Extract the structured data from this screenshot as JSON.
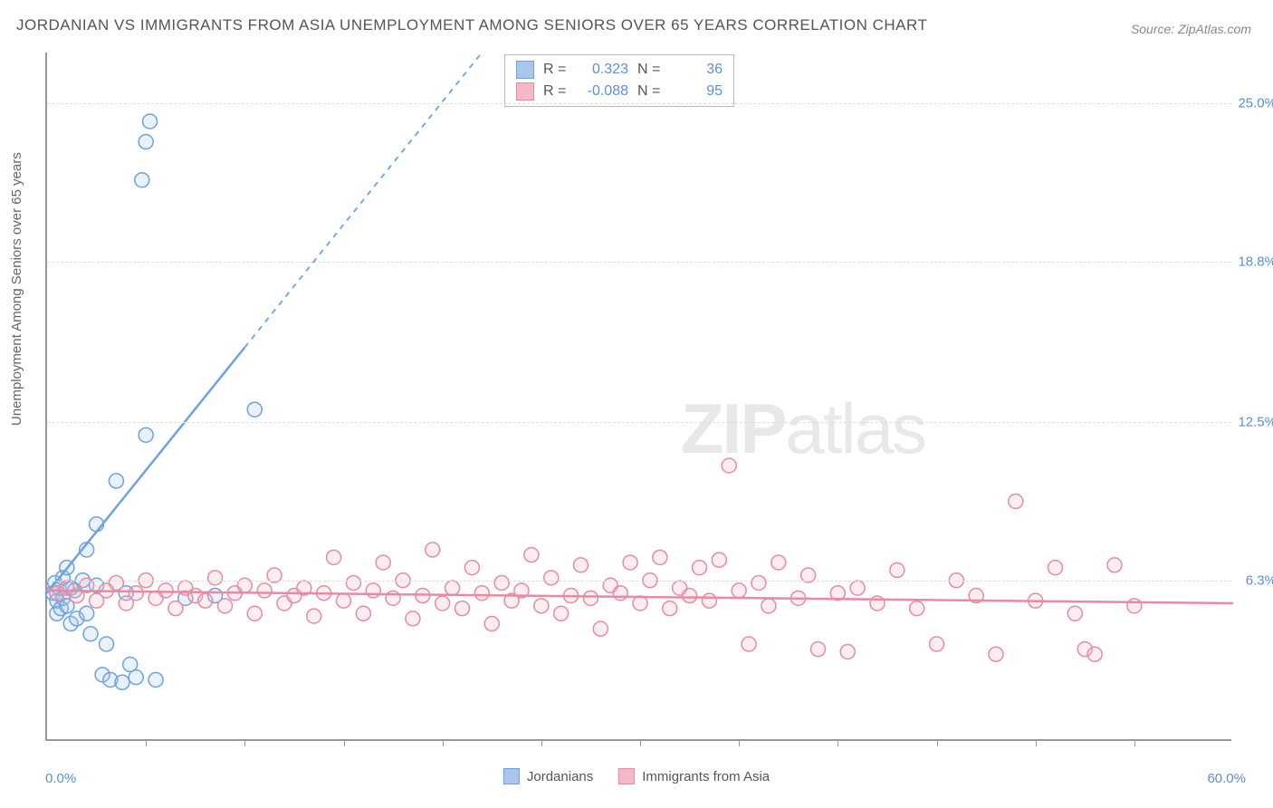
{
  "title": "JORDANIAN VS IMMIGRANTS FROM ASIA UNEMPLOYMENT AMONG SENIORS OVER 65 YEARS CORRELATION CHART",
  "source": "Source: ZipAtlas.com",
  "y_axis_label": "Unemployment Among Seniors over 65 years",
  "watermark_zip": "ZIP",
  "watermark_atlas": "atlas",
  "chart": {
    "type": "scatter",
    "background_color": "#ffffff",
    "grid_color": "#dddddd",
    "axis_color": "#999999",
    "xlim": [
      0,
      60
    ],
    "ylim": [
      0,
      27
    ],
    "xlim_min_label": "0.0%",
    "xlim_max_label": "60.0%",
    "xtick_positions": [
      5,
      10,
      15,
      20,
      25,
      30,
      35,
      40,
      45,
      50,
      55
    ],
    "ytick_labels": [
      "6.3%",
      "12.5%",
      "18.8%",
      "25.0%"
    ],
    "ytick_values": [
      6.3,
      12.5,
      18.8,
      25.0
    ],
    "marker_radius": 8,
    "marker_fill_opacity": 0.25,
    "marker_stroke_width": 1.5,
    "series": [
      {
        "name": "Jordanians",
        "color_stroke": "#6ca2e0",
        "color_fill": "#a9c7ec",
        "R": "0.323",
        "N": "36",
        "trend": {
          "x1": 0,
          "y1": 5.8,
          "x2": 22,
          "y2": 27,
          "dash_from_x": 10
        },
        "points": [
          [
            0.3,
            5.8
          ],
          [
            0.4,
            6.2
          ],
          [
            0.5,
            5.0
          ],
          [
            0.5,
            5.5
          ],
          [
            0.6,
            6.0
          ],
          [
            0.7,
            5.2
          ],
          [
            0.8,
            6.4
          ],
          [
            0.8,
            5.6
          ],
          [
            1.0,
            6.8
          ],
          [
            1.0,
            5.3
          ],
          [
            1.2,
            4.6
          ],
          [
            1.2,
            6.0
          ],
          [
            1.4,
            5.9
          ],
          [
            1.5,
            4.8
          ],
          [
            1.8,
            6.3
          ],
          [
            2.0,
            5.0
          ],
          [
            2.0,
            7.5
          ],
          [
            2.2,
            4.2
          ],
          [
            2.5,
            6.1
          ],
          [
            2.5,
            8.5
          ],
          [
            2.8,
            2.6
          ],
          [
            3.0,
            3.8
          ],
          [
            3.2,
            2.4
          ],
          [
            3.5,
            10.2
          ],
          [
            3.8,
            2.3
          ],
          [
            4.0,
            5.8
          ],
          [
            4.2,
            3.0
          ],
          [
            4.5,
            2.5
          ],
          [
            5.0,
            12.0
          ],
          [
            5.5,
            2.4
          ],
          [
            7.0,
            5.6
          ],
          [
            8.5,
            5.7
          ],
          [
            10.5,
            13.0
          ],
          [
            4.8,
            22.0
          ],
          [
            5.0,
            23.5
          ],
          [
            5.2,
            24.3
          ]
        ]
      },
      {
        "name": "Immigrants from Asia",
        "color_stroke": "#e88aa2",
        "color_fill": "#f5b8c6",
        "R": "-0.088",
        "N": "95",
        "trend": {
          "x1": 0,
          "y1": 5.9,
          "x2": 60,
          "y2": 5.4,
          "dash_from_x": 60
        },
        "points": [
          [
            0.5,
            5.8
          ],
          [
            1.0,
            6.0
          ],
          [
            1.5,
            5.7
          ],
          [
            2.0,
            6.1
          ],
          [
            2.5,
            5.5
          ],
          [
            3.0,
            5.9
          ],
          [
            3.5,
            6.2
          ],
          [
            4.0,
            5.4
          ],
          [
            4.5,
            5.8
          ],
          [
            5.0,
            6.3
          ],
          [
            5.5,
            5.6
          ],
          [
            6.0,
            5.9
          ],
          [
            6.5,
            5.2
          ],
          [
            7.0,
            6.0
          ],
          [
            7.5,
            5.7
          ],
          [
            8.0,
            5.5
          ],
          [
            8.5,
            6.4
          ],
          [
            9.0,
            5.3
          ],
          [
            9.5,
            5.8
          ],
          [
            10.0,
            6.1
          ],
          [
            10.5,
            5.0
          ],
          [
            11.0,
            5.9
          ],
          [
            11.5,
            6.5
          ],
          [
            12.0,
            5.4
          ],
          [
            12.5,
            5.7
          ],
          [
            13.0,
            6.0
          ],
          [
            13.5,
            4.9
          ],
          [
            14.0,
            5.8
          ],
          [
            14.5,
            7.2
          ],
          [
            15.0,
            5.5
          ],
          [
            15.5,
            6.2
          ],
          [
            16.0,
            5.0
          ],
          [
            16.5,
            5.9
          ],
          [
            17.0,
            7.0
          ],
          [
            17.5,
            5.6
          ],
          [
            18.0,
            6.3
          ],
          [
            18.5,
            4.8
          ],
          [
            19.0,
            5.7
          ],
          [
            19.5,
            7.5
          ],
          [
            20.0,
            5.4
          ],
          [
            20.5,
            6.0
          ],
          [
            21.0,
            5.2
          ],
          [
            21.5,
            6.8
          ],
          [
            22.0,
            5.8
          ],
          [
            22.5,
            4.6
          ],
          [
            23.0,
            6.2
          ],
          [
            23.5,
            5.5
          ],
          [
            24.0,
            5.9
          ],
          [
            24.5,
            7.3
          ],
          [
            25.0,
            5.3
          ],
          [
            25.5,
            6.4
          ],
          [
            26.0,
            5.0
          ],
          [
            26.5,
            5.7
          ],
          [
            27.0,
            6.9
          ],
          [
            27.5,
            5.6
          ],
          [
            28.0,
            4.4
          ],
          [
            28.5,
            6.1
          ],
          [
            29.0,
            5.8
          ],
          [
            29.5,
            7.0
          ],
          [
            30.0,
            5.4
          ],
          [
            30.5,
            6.3
          ],
          [
            31.0,
            7.2
          ],
          [
            31.5,
            5.2
          ],
          [
            32.0,
            6.0
          ],
          [
            32.5,
            5.7
          ],
          [
            33.0,
            6.8
          ],
          [
            33.5,
            5.5
          ],
          [
            34.0,
            7.1
          ],
          [
            34.5,
            10.8
          ],
          [
            35.0,
            5.9
          ],
          [
            35.5,
            3.8
          ],
          [
            36.0,
            6.2
          ],
          [
            36.5,
            5.3
          ],
          [
            37.0,
            7.0
          ],
          [
            38.0,
            5.6
          ],
          [
            38.5,
            6.5
          ],
          [
            39.0,
            3.6
          ],
          [
            40.0,
            5.8
          ],
          [
            40.5,
            3.5
          ],
          [
            41.0,
            6.0
          ],
          [
            42.0,
            5.4
          ],
          [
            43.0,
            6.7
          ],
          [
            44.0,
            5.2
          ],
          [
            45.0,
            3.8
          ],
          [
            46.0,
            6.3
          ],
          [
            47.0,
            5.7
          ],
          [
            48.0,
            3.4
          ],
          [
            49.0,
            9.4
          ],
          [
            50.0,
            5.5
          ],
          [
            51.0,
            6.8
          ],
          [
            52.0,
            5.0
          ],
          [
            52.5,
            3.6
          ],
          [
            53.0,
            3.4
          ],
          [
            54.0,
            6.9
          ],
          [
            55.0,
            5.3
          ]
        ]
      }
    ],
    "legend": {
      "labels": [
        "Jordanians",
        "Immigrants from Asia"
      ]
    },
    "stats_labels": {
      "R": "R =",
      "N": "N ="
    }
  }
}
